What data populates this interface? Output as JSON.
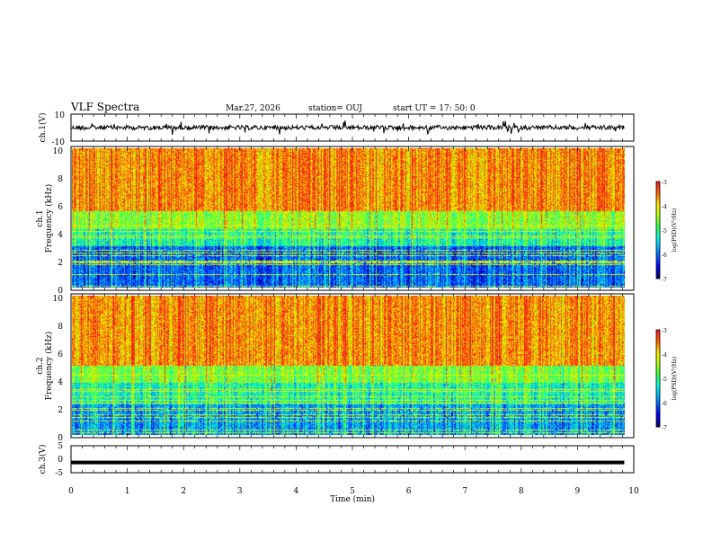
{
  "header": {
    "title": "VLF Spectra",
    "date": "Mar.27, 2026",
    "station": "station= OUJ",
    "start": "start  UT  =   17: 50: 0"
  },
  "chart_data": [
    {
      "type": "line",
      "name": "ch1-waveform",
      "ylabel": "ch.1(V)",
      "ylim": [
        -10,
        10
      ],
      "yticks": [
        "10",
        "-10"
      ],
      "xlim": [
        0,
        10
      ],
      "trace_level": 0
    },
    {
      "type": "heatmap",
      "name": "ch1-spectrogram",
      "ylabel_top": "ch.1",
      "ylabel": "Frequency  (kHz)",
      "ylim": [
        0,
        10
      ],
      "yticks": [
        "0",
        "2",
        "4",
        "6",
        "8",
        "10"
      ],
      "xlim": [
        0,
        9.83
      ],
      "colorbar_label": "log(PSD)(V²/Hz)",
      "colorbar_ticks": [
        "-3",
        "-4",
        "-5",
        "-6",
        "-7"
      ],
      "colorbar_range": [
        -7,
        -3
      ]
    },
    {
      "type": "heatmap",
      "name": "ch2-spectrogram",
      "ylabel_top": "ch.2",
      "ylabel": "Frequency  (kHz)",
      "ylim": [
        0,
        10
      ],
      "yticks": [
        "0",
        "2",
        "4",
        "6",
        "8",
        "10"
      ],
      "xlim": [
        0,
        9.83
      ],
      "colorbar_label": "log(PSD)(V²/Hz)",
      "colorbar_ticks": [
        "-3",
        "-4",
        "-5",
        "-6",
        "-7"
      ],
      "colorbar_range": [
        -7,
        -3
      ]
    },
    {
      "type": "line",
      "name": "ch3-waveform",
      "ylabel": "ch.3(V)",
      "ylim": [
        -5,
        5
      ],
      "yticks": [
        "5",
        "0",
        "-5"
      ],
      "xlim": [
        0,
        10
      ],
      "trace_level": -1.2,
      "xlabel": "Time  (min)",
      "xticks": [
        "0",
        "1",
        "2",
        "3",
        "4",
        "5",
        "6",
        "7",
        "8",
        "9",
        "10"
      ]
    }
  ]
}
